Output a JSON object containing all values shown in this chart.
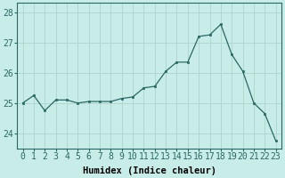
{
  "x": [
    0,
    1,
    2,
    3,
    4,
    5,
    6,
    7,
    8,
    9,
    10,
    11,
    12,
    13,
    14,
    15,
    16,
    17,
    18,
    19,
    20,
    21,
    22,
    23
  ],
  "y": [
    25.0,
    25.25,
    24.75,
    25.1,
    25.1,
    25.0,
    25.05,
    25.05,
    25.05,
    25.15,
    25.2,
    25.5,
    25.55,
    26.05,
    26.35,
    26.35,
    27.2,
    27.25,
    27.6,
    26.6,
    26.05,
    25.0,
    24.65,
    23.75
  ],
  "xlabel": "Humidex (Indice chaleur)",
  "ylim": [
    23.5,
    28.3
  ],
  "yticks": [
    24,
    25,
    26,
    27,
    28
  ],
  "bg_color": "#c8ede8",
  "grid_color": "#b0d8d0",
  "line_color": "#2a6860",
  "xlabel_fontsize": 7.5,
  "tick_fontsize": 7
}
